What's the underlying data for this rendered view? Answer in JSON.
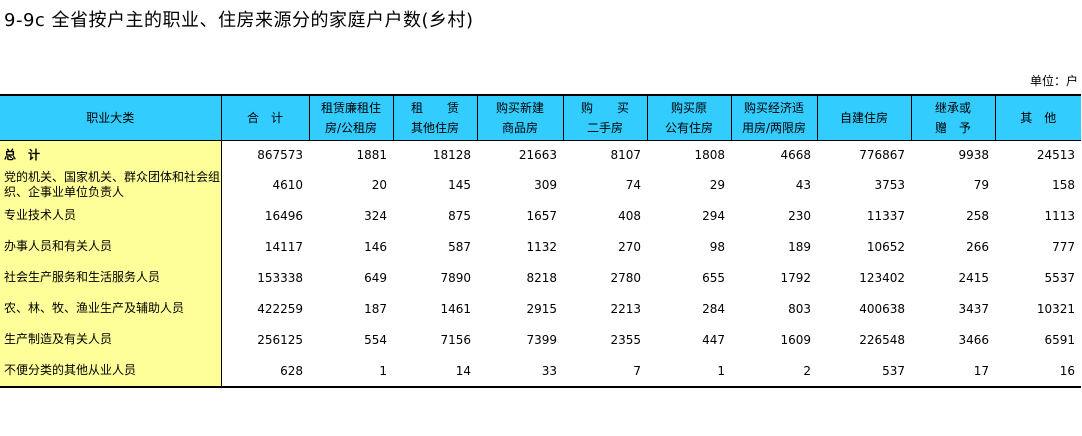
{
  "title": "9-9c  全省按户主的职业、住房来源分的家庭户户数(乡村)",
  "unit": "单位：户",
  "headers": [
    [
      "职业大类"
    ],
    [
      "合　计"
    ],
    [
      "租赁廉租住",
      "房/公租房"
    ],
    [
      "租　　赁",
      "其他住房"
    ],
    [
      "购买新建",
      "商品房"
    ],
    [
      "购　　买",
      "二手房"
    ],
    [
      "购买原",
      "公有住房"
    ],
    [
      "购买经济适",
      "用房/两限房"
    ],
    [
      "自建住房"
    ],
    [
      "继承或",
      "赠　予"
    ],
    [
      "其　他"
    ]
  ],
  "rows": [
    {
      "name": "总　计",
      "values": [
        "867573",
        "1881",
        "18128",
        "21663",
        "8107",
        "1808",
        "4668",
        "776867",
        "9938",
        "24513"
      ]
    },
    {
      "name": "党的机关、国家机关、群众团体和社会组织、企事业单位负责人",
      "values": [
        "4610",
        "20",
        "145",
        "309",
        "74",
        "29",
        "43",
        "3753",
        "79",
        "158"
      ]
    },
    {
      "name": "专业技术人员",
      "values": [
        "16496",
        "324",
        "875",
        "1657",
        "408",
        "294",
        "230",
        "11337",
        "258",
        "1113"
      ]
    },
    {
      "name": "办事人员和有关人员",
      "values": [
        "14117",
        "146",
        "587",
        "1132",
        "270",
        "98",
        "189",
        "10652",
        "266",
        "777"
      ]
    },
    {
      "name": "社会生产服务和生活服务人员",
      "values": [
        "153338",
        "649",
        "7890",
        "8218",
        "2780",
        "655",
        "1792",
        "123402",
        "2415",
        "5537"
      ]
    },
    {
      "name": "农、林、牧、渔业生产及辅助人员",
      "values": [
        "422259",
        "187",
        "1461",
        "2915",
        "2213",
        "284",
        "803",
        "400638",
        "3437",
        "10321"
      ]
    },
    {
      "name": "生产制造及有关人员",
      "values": [
        "256125",
        "554",
        "7156",
        "7399",
        "2355",
        "447",
        "1609",
        "226548",
        "3466",
        "6591"
      ]
    },
    {
      "name": "不便分类的其他从业人员",
      "values": [
        "628",
        "1",
        "14",
        "33",
        "7",
        "1",
        "2",
        "537",
        "17",
        "16"
      ]
    }
  ]
}
